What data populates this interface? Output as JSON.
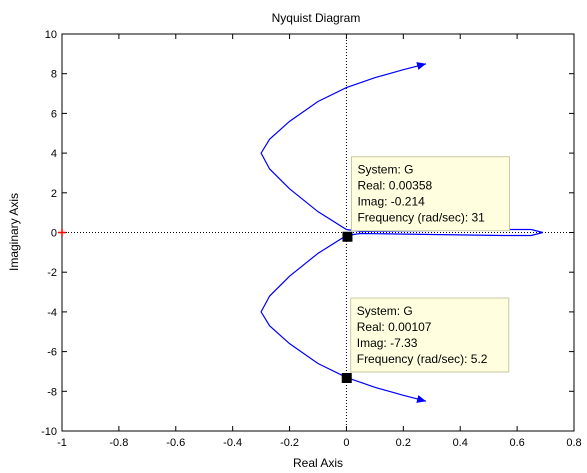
{
  "chart_data": {
    "type": "line",
    "title": "Nyquist Diagram",
    "xlabel": "Real Axis",
    "ylabel": "Imaginary Axis",
    "xlim": [
      -1,
      0.8
    ],
    "ylim": [
      -10,
      10
    ],
    "xticks": [
      -1,
      -0.8,
      -0.6,
      -0.4,
      -0.2,
      0,
      0.2,
      0.4,
      0.6,
      0.8
    ],
    "xtick_labels": [
      "-1",
      "-0.8",
      "-0.6",
      "-0.4",
      "-0.2",
      "0",
      "0.2",
      "0.4",
      "0.6",
      "0.8"
    ],
    "yticks": [
      -10,
      -8,
      -6,
      -4,
      -2,
      0,
      2,
      4,
      6,
      8,
      10
    ],
    "ytick_labels": [
      "-10",
      "-8",
      "-6",
      "-4",
      "-2",
      "0",
      "2",
      "4",
      "6",
      "8",
      "10"
    ],
    "grid": false,
    "critical_point": {
      "x": -1,
      "y": 0
    },
    "series": [
      {
        "color": "#0000ff",
        "branch_upper": {
          "x": [
            0.28,
            0.2,
            0.1,
            0.0,
            -0.1,
            -0.2,
            -0.27,
            -0.3,
            -0.27,
            -0.2,
            -0.1,
            0.0,
            0.05,
            0.3,
            0.55,
            0.65,
            0.69
          ],
          "y": [
            8.5,
            8.2,
            7.8,
            7.3,
            6.6,
            5.6,
            4.7,
            4.0,
            3.2,
            2.2,
            1.05,
            0.15,
            0.05,
            0.1,
            0.15,
            0.15,
            0.0
          ]
        },
        "branch_lower": {
          "x": [
            0.28,
            0.2,
            0.1,
            0.0,
            -0.1,
            -0.2,
            -0.27,
            -0.3,
            -0.27,
            -0.2,
            -0.1,
            0.0,
            0.05,
            0.3,
            0.55,
            0.65,
            0.69
          ],
          "y": [
            -8.5,
            -8.2,
            -7.8,
            -7.3,
            -6.6,
            -5.6,
            -4.7,
            -4.0,
            -3.2,
            -2.2,
            -1.05,
            -0.15,
            -0.05,
            -0.1,
            -0.15,
            -0.15,
            0.0
          ]
        }
      }
    ],
    "datatips": [
      {
        "x": 0.00358,
        "y": -0.214,
        "lines": [
          "System: G",
          "Real: 0.00358",
          "Imag: -0.214",
          "Frequency (rad/sec): 31"
        ]
      },
      {
        "x": 0.00107,
        "y": -7.33,
        "lines": [
          "System: G",
          "Real: 0.00107",
          "Imag: -7.33",
          "Frequency (rad/sec): 5.2"
        ]
      }
    ]
  }
}
